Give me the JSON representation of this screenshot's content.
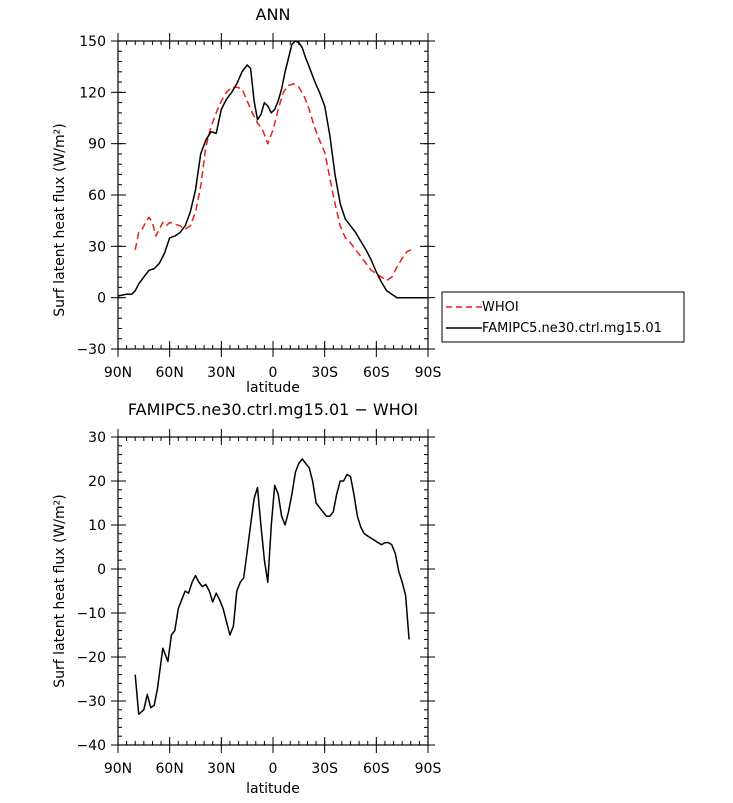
{
  "chart_data": [
    {
      "type": "line",
      "title": "ANN",
      "xlabel": "latitude",
      "ylabel": "Surf latent heat flux (W/m²)",
      "xlim": [
        90,
        -90
      ],
      "ylim": [
        -30,
        150
      ],
      "xticks": [
        90,
        60,
        30,
        0,
        -30,
        -60,
        -90
      ],
      "xtick_labels": [
        "90N",
        "60N",
        "30N",
        "0",
        "30S",
        "60S",
        "90S"
      ],
      "yticks": [
        -30,
        0,
        30,
        60,
        90,
        120,
        150
      ],
      "ytick_labels": [
        "−30",
        "0",
        "30",
        "60",
        "90",
        "120",
        "150"
      ],
      "grid": false,
      "legend": "right",
      "series": [
        {
          "name": "WHOI",
          "color": "#e8201c",
          "dash": "dashed",
          "x": [
            80,
            78,
            76,
            74,
            72,
            70,
            68,
            66,
            64,
            62,
            60,
            57,
            54,
            51,
            48,
            45,
            42,
            39,
            36,
            33,
            30,
            27,
            24,
            21,
            18,
            15,
            12,
            9,
            6,
            3,
            0,
            -3,
            -6,
            -9,
            -12,
            -15,
            -18,
            -21,
            -24,
            -27,
            -30,
            -33,
            -36,
            -39,
            -42,
            -45,
            -48,
            -51,
            -54,
            -57,
            -60,
            -63,
            -66,
            -69,
            -72,
            -75,
            -78,
            -80
          ],
          "y": [
            28,
            38,
            40,
            44,
            47,
            44,
            36,
            40,
            44,
            42,
            44,
            43,
            42,
            40,
            42,
            50,
            65,
            88,
            100,
            108,
            115,
            120,
            123,
            123,
            122,
            115,
            108,
            102,
            98,
            90,
            98,
            110,
            120,
            124,
            125,
            123,
            118,
            110,
            100,
            92,
            85,
            70,
            55,
            42,
            35,
            32,
            28,
            24,
            20,
            16,
            14,
            12,
            10,
            12,
            18,
            23,
            27,
            28
          ]
        },
        {
          "name": "FAMIPC5.ne30.ctrl.mg15.01",
          "color": "#000000",
          "dash": "solid",
          "x": [
            90,
            85,
            82,
            80,
            78,
            75,
            72,
            69,
            66,
            63,
            60,
            57,
            54,
            51,
            48,
            45,
            42,
            39,
            36,
            33,
            30,
            27,
            24,
            21,
            18,
            15,
            13,
            11,
            9,
            7,
            5,
            3,
            1,
            -1,
            -3,
            -5,
            -7,
            -9,
            -11,
            -13,
            -15,
            -17,
            -19,
            -21,
            -24,
            -27,
            -30,
            -33,
            -36,
            -39,
            -42,
            -45,
            -48,
            -51,
            -54,
            -57,
            -60,
            -63,
            -66,
            -69,
            -72,
            -75,
            -78,
            -81,
            -84,
            -87,
            -90
          ],
          "y": [
            1,
            2,
            2,
            4,
            8,
            12,
            16,
            17,
            20,
            26,
            35,
            36,
            38,
            42,
            50,
            63,
            84,
            92,
            97,
            96,
            110,
            116,
            120,
            125,
            132,
            136,
            134,
            115,
            104,
            107,
            114,
            112,
            108,
            110,
            115,
            122,
            132,
            140,
            148,
            150,
            149,
            146,
            140,
            135,
            127,
            120,
            112,
            95,
            72,
            55,
            46,
            42,
            38,
            33,
            28,
            22,
            15,
            9,
            4,
            2,
            0,
            0,
            0,
            0,
            0,
            0,
            0
          ]
        }
      ]
    },
    {
      "type": "line",
      "title": "FAMIPC5.ne30.ctrl.mg15.01 − WHOI",
      "xlabel": "latitude",
      "ylabel": "Surf latent heat flux (W/m²)",
      "xlim": [
        90,
        -90
      ],
      "ylim": [
        -40,
        30
      ],
      "xticks": [
        90,
        60,
        30,
        0,
        -30,
        -60,
        -90
      ],
      "xtick_labels": [
        "90N",
        "60N",
        "30N",
        "0",
        "30S",
        "60S",
        "90S"
      ],
      "yticks": [
        -40,
        -30,
        -20,
        -10,
        0,
        10,
        20,
        30
      ],
      "ytick_labels": [
        "−40",
        "−30",
        "−20",
        "−10",
        "0",
        "10",
        "20",
        "30"
      ],
      "grid": false,
      "series": [
        {
          "color": "#000000",
          "dash": "solid",
          "x": [
            80,
            78,
            75,
            73,
            71,
            69,
            67,
            64,
            62,
            61,
            59,
            57,
            55,
            53,
            51,
            49,
            47,
            45,
            43,
            41,
            39,
            37,
            35,
            33,
            31,
            29,
            27,
            25,
            23,
            21,
            19,
            17,
            15,
            13,
            11,
            9,
            7,
            5,
            3,
            1,
            -1,
            -3,
            -5,
            -7,
            -9,
            -11,
            -13,
            -15,
            -17,
            -19,
            -21,
            -23,
            -25,
            -27,
            -29,
            -31,
            -33,
            -35,
            -37,
            -39,
            -41,
            -43,
            -45,
            -47,
            -49,
            -51,
            -53,
            -55,
            -57,
            -59,
            -61,
            -63,
            -65,
            -67,
            -69,
            -71,
            -73,
            -75,
            -77,
            -79
          ],
          "y": [
            -24,
            -33,
            -32,
            -28.5,
            -31.5,
            -31,
            -27,
            -18,
            -20,
            -21,
            -15,
            -14,
            -9,
            -7,
            -5,
            -5.5,
            -3,
            -1.5,
            -3,
            -4,
            -3.5,
            -5,
            -7.5,
            -5.5,
            -7,
            -9,
            -12,
            -15,
            -13,
            -5,
            -3,
            -2,
            4,
            10,
            16,
            18.5,
            10,
            2,
            -3,
            10,
            19,
            17,
            12,
            10,
            13,
            17,
            22,
            24,
            25,
            24,
            23,
            20,
            15,
            14,
            13,
            12,
            12,
            13,
            17,
            20,
            20,
            21.5,
            21,
            17,
            12,
            9.5,
            8,
            7.5,
            7,
            6.5,
            6,
            5.5,
            6,
            6,
            5.5,
            3.5,
            -0.5,
            -3,
            -6,
            -16
          ]
        }
      ]
    }
  ]
}
